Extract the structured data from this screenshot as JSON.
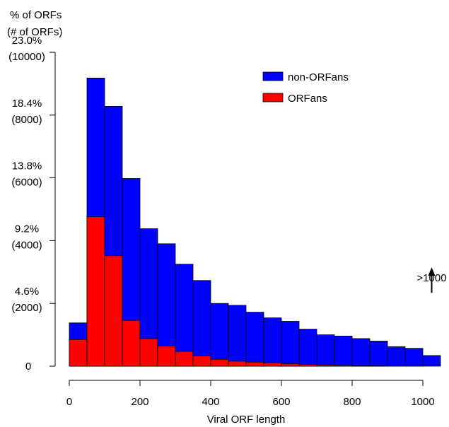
{
  "chart_data": {
    "type": "bar",
    "stacked": true,
    "title": "",
    "xlabel": "Viral ORF length",
    "ylabel_lines": [
      "% of ORFs",
      "(# of ORFs)"
    ],
    "x_ticks": [
      0,
      200,
      400,
      600,
      800,
      1000
    ],
    "x_tick_labels": [
      "0",
      "200",
      "400",
      "600",
      "800",
      "1000"
    ],
    "xlim": [
      0,
      1050
    ],
    "ylim": [
      0,
      10000
    ],
    "y_ticks": [
      0,
      2000,
      4000,
      6000,
      8000,
      10000
    ],
    "y_tick_labels": [
      [
        "0"
      ],
      [
        "4.6%",
        "(2000)"
      ],
      [
        "9.2%",
        "(4000)"
      ],
      [
        "13.8%",
        "(6000)"
      ],
      [
        "18.4%",
        "(8000)"
      ],
      [
        "23.0%",
        "(10000)"
      ]
    ],
    "bin_width": 50,
    "bins_start": [
      0,
      50,
      100,
      150,
      200,
      250,
      300,
      350,
      400,
      450,
      500,
      550,
      600,
      650,
      700,
      750,
      800,
      850,
      900,
      950,
      1000
    ],
    "series": [
      {
        "name": "non-ORFans",
        "color": "#0000ff",
        "totals": [
          1380,
          9180,
          8280,
          5980,
          4380,
          3900,
          3250,
          2730,
          2000,
          1940,
          1720,
          1540,
          1430,
          1180,
          1000,
          960,
          880,
          800,
          620,
          570,
          340,
          2250
        ]
      },
      {
        "name": "ORFans",
        "color": "#ff0000",
        "values": [
          850,
          4760,
          3520,
          1460,
          880,
          640,
          470,
          330,
          220,
          160,
          130,
          110,
          80,
          60,
          40,
          30,
          20,
          20,
          10,
          10,
          0,
          150
        ]
      }
    ],
    "overflow_bin": {
      "label": ">1000",
      "bin_start": 1000
    },
    "legend_position": "top-right",
    "grid": false
  }
}
